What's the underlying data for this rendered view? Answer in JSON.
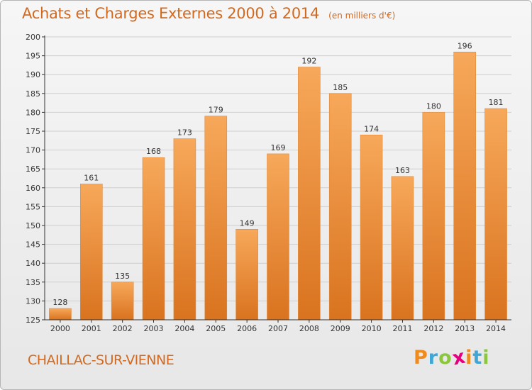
{
  "header": {
    "title": "Achats et Charges Externes 2000 à 2014",
    "unit_note": "(en milliers d'€)"
  },
  "footer": {
    "town": "CHAILLAC-SUR-VIENNE",
    "brand": "Proxiti"
  },
  "colors": {
    "accent_text": "#d2691e",
    "bar_top": "#f7a85a",
    "bar_bottom": "#d9731f",
    "brand_letters": [
      "#f08a1c",
      "#3fa7d6",
      "#8cc63f",
      "#e6007e",
      "#f08a1c",
      "#3fa7d6",
      "#8cc63f"
    ]
  },
  "chart_data": {
    "type": "bar",
    "title": "Achats et Charges Externes 2000 à 2014",
    "subtitle": "(en milliers d'€)",
    "xlabel": "",
    "ylabel": "",
    "categories": [
      "2000",
      "2001",
      "2002",
      "2003",
      "2004",
      "2005",
      "2006",
      "2007",
      "2008",
      "2009",
      "2010",
      "2011",
      "2012",
      "2013",
      "2014"
    ],
    "values": [
      128,
      161,
      135,
      168,
      173,
      179,
      149,
      169,
      192,
      185,
      174,
      163,
      180,
      196,
      181
    ],
    "ylim": [
      125,
      200
    ],
    "yticks": [
      125,
      130,
      135,
      140,
      145,
      150,
      155,
      160,
      165,
      170,
      175,
      180,
      185,
      190,
      195,
      200
    ],
    "grid": true,
    "legend": "none"
  }
}
